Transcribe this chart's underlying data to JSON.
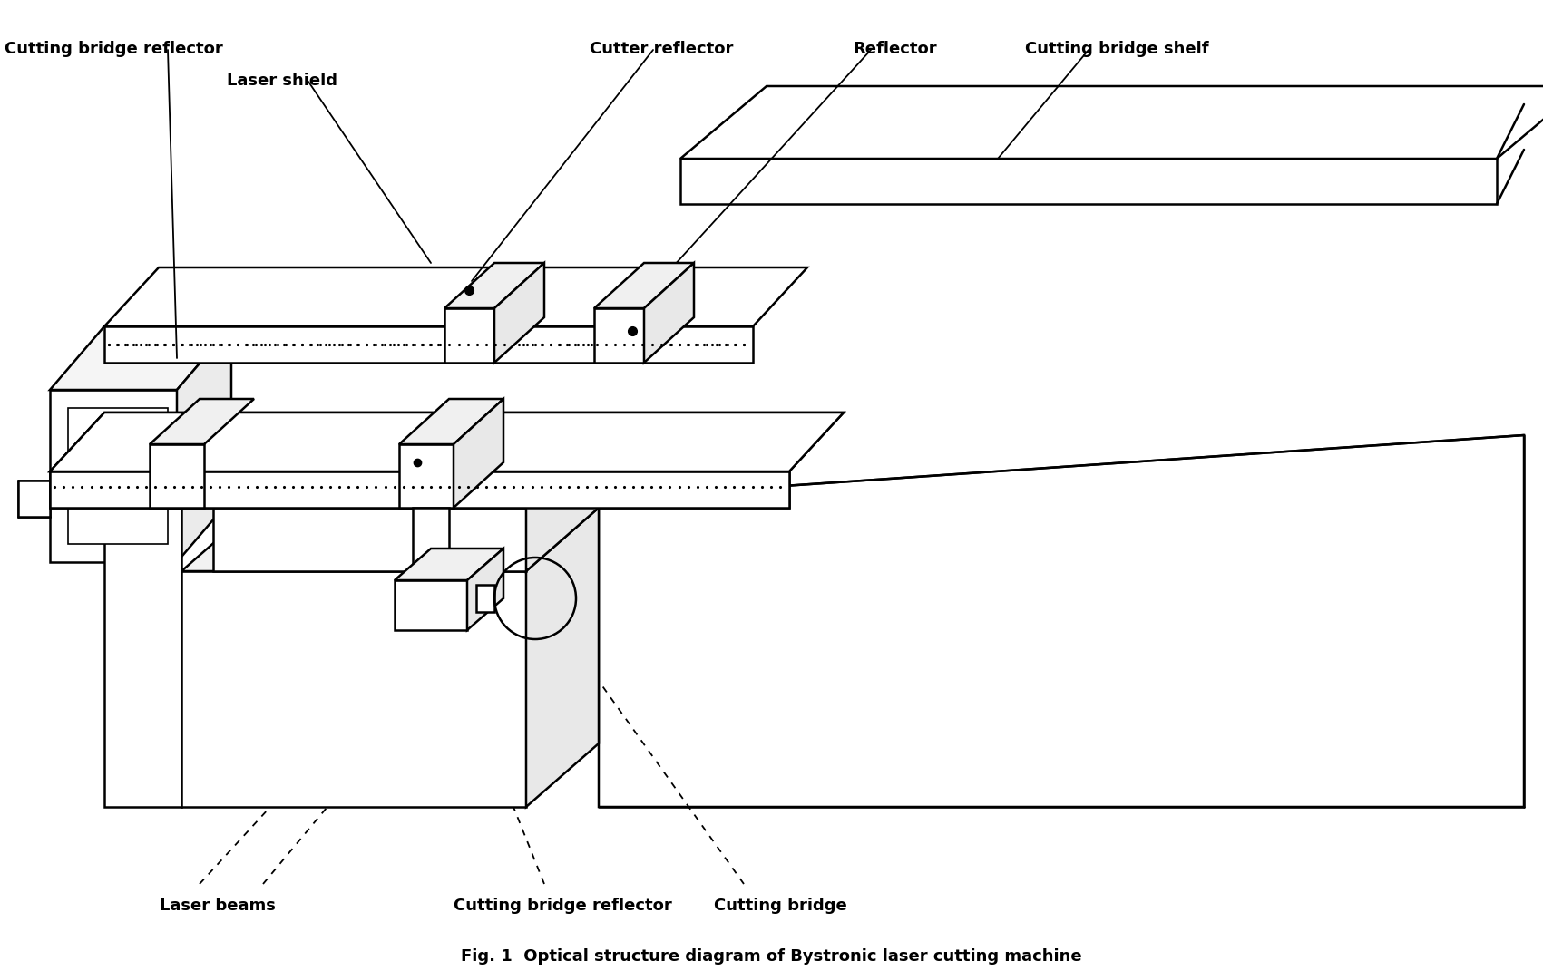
{
  "title": "Fig. 1  Optical structure diagram of Bystronic laser cutting machine",
  "title_fontsize": 13,
  "title_fontweight": "bold",
  "background_color": "#ffffff",
  "line_color": "#000000",
  "label_fontsize": 13,
  "label_fontweight": "bold",
  "labels": {
    "cutting_bridge_reflector_top": "Cutting bridge reflector",
    "laser_shield": "Laser shield",
    "cutter_reflector": "Cutter reflector",
    "reflector": "Reflector",
    "cutting_bridge_shelf": "Cutting bridge shelf",
    "laser_beams": "Laser beams",
    "cutting_bridge_reflector_bot": "Cutting bridge reflector",
    "cutting_bridge": "Cutting bridge"
  }
}
